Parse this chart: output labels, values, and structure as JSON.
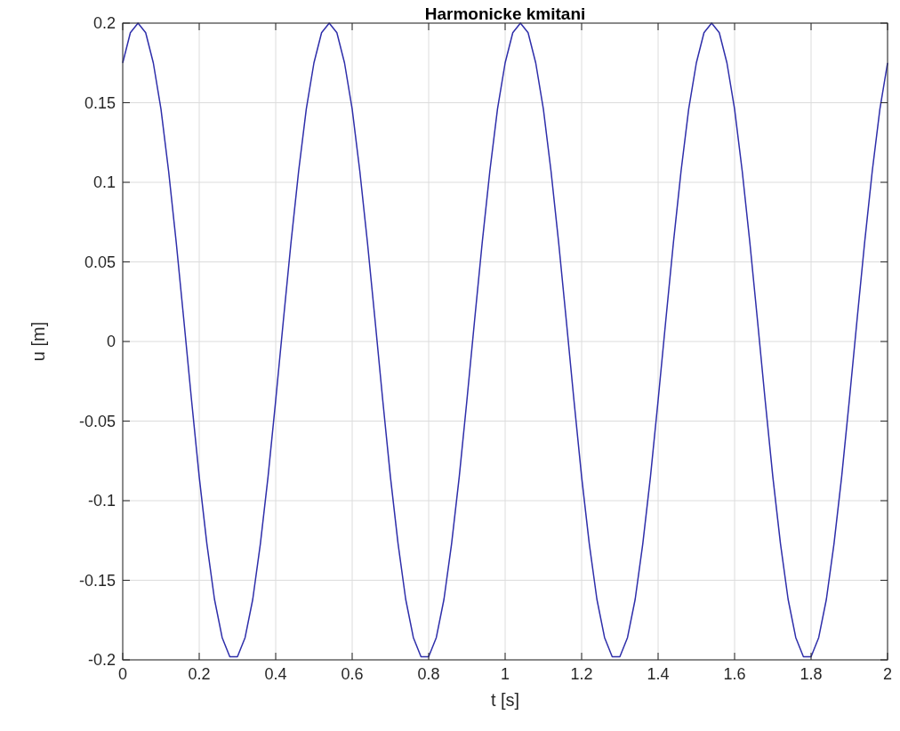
{
  "chart_data": {
    "type": "line",
    "title": "Harmonicke kmitani",
    "xlabel": "t [s]",
    "ylabel": "u [m]",
    "x": [
      0,
      0.02,
      0.04,
      0.06,
      0.08,
      0.1,
      0.12,
      0.14,
      0.16,
      0.18,
      0.2,
      0.22,
      0.24,
      0.26,
      0.28,
      0.3,
      0.32,
      0.34,
      0.36,
      0.38,
      0.4,
      0.42,
      0.44,
      0.46,
      0.48,
      0.5,
      0.52,
      0.54,
      0.56,
      0.58,
      0.6,
      0.62,
      0.64,
      0.66,
      0.68,
      0.7,
      0.72,
      0.74,
      0.76,
      0.78,
      0.8,
      0.82,
      0.84,
      0.86,
      0.88,
      0.9,
      0.92,
      0.94,
      0.96,
      0.98,
      1,
      1.02,
      1.04,
      1.06,
      1.08,
      1.1,
      1.12,
      1.14,
      1.16,
      1.18,
      1.2,
      1.22,
      1.24,
      1.26,
      1.28,
      1.3,
      1.32,
      1.34,
      1.36,
      1.38,
      1.4,
      1.42,
      1.44,
      1.46,
      1.48,
      1.5,
      1.52,
      1.54,
      1.56,
      1.58,
      1.6,
      1.62,
      1.64,
      1.66,
      1.68,
      1.7,
      1.72,
      1.74,
      1.76,
      1.78,
      1.8,
      1.82,
      1.84,
      1.86,
      1.88,
      1.9,
      1.92,
      1.94,
      1.96,
      1.98,
      2
    ],
    "series": [
      {
        "color": "#2e2eaa",
        "values": [
          0.175,
          0.194,
          0.2,
          0.194,
          0.175,
          0.146,
          0.107,
          0.062,
          0.013,
          -0.037,
          -0.085,
          -0.127,
          -0.162,
          -0.186,
          -0.198,
          -0.198,
          -0.186,
          -0.162,
          -0.127,
          -0.085,
          -0.037,
          0.013,
          0.062,
          0.107,
          0.146,
          0.175,
          0.194,
          0.2,
          0.194,
          0.175,
          0.146,
          0.107,
          0.062,
          0.013,
          -0.037,
          -0.085,
          -0.127,
          -0.162,
          -0.186,
          -0.198,
          -0.198,
          -0.186,
          -0.162,
          -0.127,
          -0.085,
          -0.037,
          0.013,
          0.062,
          0.107,
          0.146,
          0.175,
          0.194,
          0.2,
          0.194,
          0.175,
          0.146,
          0.107,
          0.062,
          0.013,
          -0.037,
          -0.085,
          -0.127,
          -0.162,
          -0.186,
          -0.198,
          -0.198,
          -0.186,
          -0.162,
          -0.127,
          -0.085,
          -0.037,
          0.013,
          0.062,
          0.107,
          0.146,
          0.175,
          0.194,
          0.2,
          0.194,
          0.175,
          0.146,
          0.107,
          0.062,
          0.013,
          -0.037,
          -0.085,
          -0.127,
          -0.162,
          -0.186,
          -0.198,
          -0.198,
          -0.186,
          -0.162,
          -0.127,
          -0.085,
          -0.037,
          0.013,
          0.062,
          0.107,
          0.146,
          0.175
        ]
      }
    ],
    "xlim": [
      0,
      2
    ],
    "xticks": [
      0,
      0.2,
      0.4,
      0.6,
      0.8,
      1,
      1.2,
      1.4,
      1.6,
      1.8,
      2
    ],
    "ylim": [
      -0.2,
      0.2
    ],
    "yticks": [
      -0.2,
      -0.15,
      -0.1,
      -0.05,
      0,
      0.05,
      0.1,
      0.15,
      0.2
    ],
    "grid": true,
    "line_style": "solid"
  }
}
